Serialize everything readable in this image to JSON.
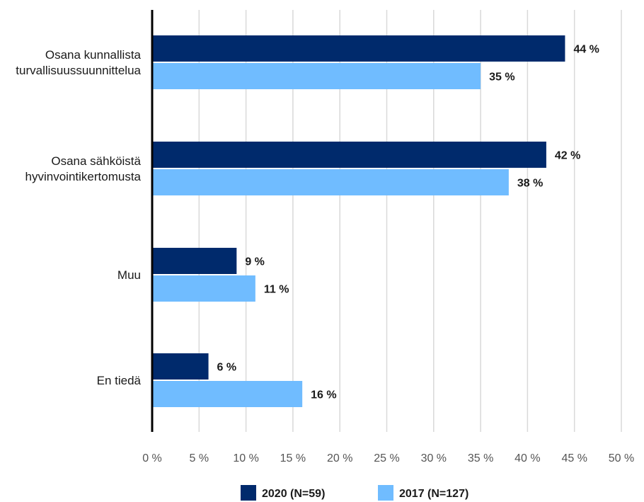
{
  "chart_data": {
    "type": "bar",
    "orientation": "horizontal",
    "categories": [
      [
        "Osana kunnallista",
        "turvallisuussuunnittelua"
      ],
      [
        "Osana sähköistä",
        "hyvinvointikertomusta"
      ],
      [
        "Muu"
      ],
      [
        "En tiedä"
      ]
    ],
    "series": [
      {
        "name": "2020 (N=59)",
        "color": "#002a6c",
        "values": [
          44,
          42,
          9,
          6
        ],
        "labels": [
          "44 %",
          "42 %",
          "9 %",
          "6 %"
        ]
      },
      {
        "name": "2017 (N=127)",
        "color": "#70bcff",
        "values": [
          35,
          38,
          11,
          16
        ],
        "labels": [
          "35 %",
          "38 %",
          "11 %",
          "16 %"
        ]
      }
    ],
    "xlim": [
      0,
      50
    ],
    "xticks": [
      0,
      5,
      10,
      15,
      20,
      25,
      30,
      35,
      40,
      45,
      50
    ],
    "xtick_labels": [
      "0 %",
      "5 %",
      "10 %",
      "15 %",
      "20 %",
      "25 %",
      "30 %",
      "35 %",
      "40 %",
      "45 %",
      "50 %"
    ],
    "grid": "vertical",
    "legend_position": "bottom"
  }
}
